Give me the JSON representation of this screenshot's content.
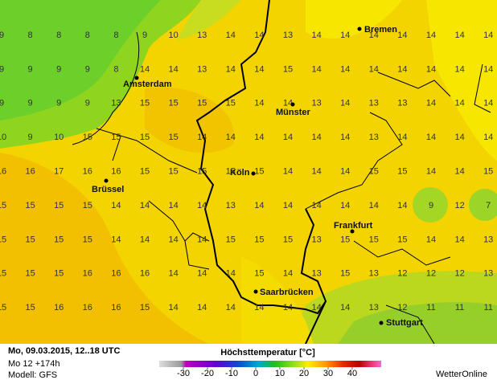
{
  "map": {
    "grid": [
      [
        9,
        8,
        8,
        8,
        8,
        9,
        10,
        13,
        14,
        14,
        13,
        14,
        14,
        14,
        14,
        14,
        14,
        14
      ],
      [
        9,
        9,
        9,
        9,
        8,
        14,
        14,
        13,
        14,
        14,
        15,
        14,
        14,
        14,
        14,
        14,
        14,
        14
      ],
      [
        9,
        9,
        9,
        9,
        13,
        15,
        15,
        15,
        15,
        14,
        14,
        13,
        14,
        13,
        13,
        14,
        14,
        14
      ],
      [
        10,
        9,
        10,
        15,
        15,
        15,
        15,
        14,
        14,
        14,
        14,
        14,
        14,
        13,
        14,
        14,
        14,
        14
      ],
      [
        16,
        16,
        17,
        16,
        16,
        15,
        15,
        15,
        15,
        15,
        14,
        14,
        14,
        15,
        15,
        14,
        14,
        15
      ],
      [
        15,
        15,
        15,
        15,
        14,
        14,
        14,
        14,
        13,
        14,
        14,
        14,
        14,
        14,
        14,
        9,
        12,
        7
      ],
      [
        15,
        15,
        15,
        15,
        14,
        14,
        14,
        14,
        15,
        15,
        15,
        13,
        15,
        15,
        15,
        14,
        14,
        13
      ],
      [
        15,
        15,
        15,
        16,
        16,
        16,
        14,
        14,
        14,
        15,
        14,
        13,
        15,
        13,
        12,
        12,
        12,
        13
      ],
      [
        15,
        15,
        16,
        16,
        16,
        15,
        14,
        14,
        14,
        14,
        14,
        14,
        14,
        13,
        12,
        11,
        11,
        11
      ]
    ],
    "cities": [
      "Bremen",
      "Amsterdam",
      "Münster",
      "Köln",
      "Brüssel",
      "Frankfurt",
      "Saarbrücken",
      "Stuttgart"
    ]
  },
  "footer": {
    "date": "Mo, 09.03.2015, 12..18 UTC",
    "run": "Mo 12 +174h",
    "model": "Modell: GFS",
    "legend_title": "Höchsttemperatur [°C]",
    "scale_ticks": [
      -30,
      -20,
      -10,
      0,
      10,
      20,
      30,
      40
    ],
    "scale_lim": [
      -40,
      52
    ],
    "brand": "WetterOnline"
  }
}
